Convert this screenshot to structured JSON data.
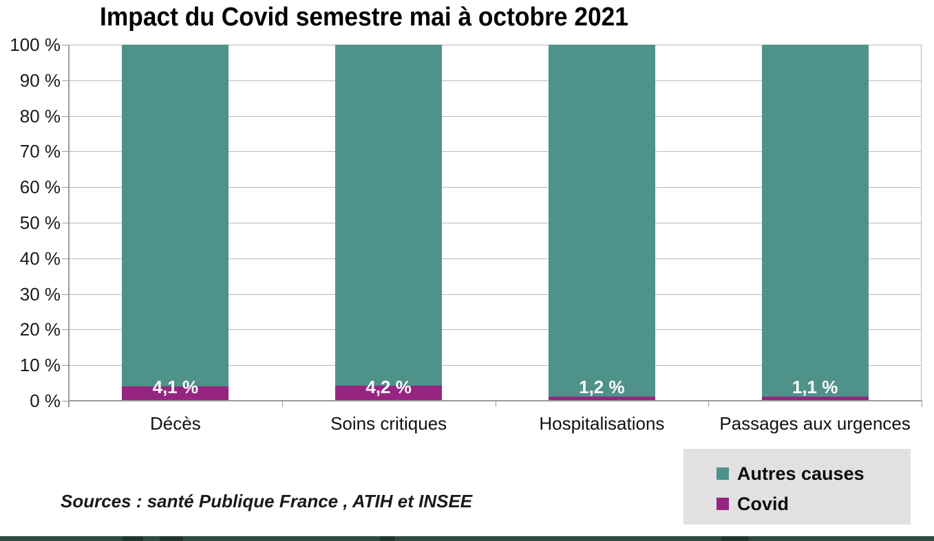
{
  "chart_data": {
    "type": "bar",
    "stacked": true,
    "title": "Impact du Covid semestre mai à octobre 2021",
    "categories": [
      "Décès",
      "Soins critiques",
      "Hospitalisations",
      "Passages aux urgences"
    ],
    "series": [
      {
        "name": "Covid",
        "color": "#962581",
        "values": [
          4.1,
          4.2,
          1.2,
          1.1
        ],
        "value_labels": [
          "4,1 %",
          "4,2 %",
          "1,2 %",
          "1,1 %"
        ]
      },
      {
        "name": "Autres causes",
        "color": "#4f928a",
        "values": [
          95.9,
          95.8,
          98.8,
          98.9
        ]
      }
    ],
    "ylabel": "",
    "xlabel": "",
    "ylim": [
      0,
      100
    ],
    "y_ticks": [
      "0 %",
      "10 %",
      "20 %",
      "30 %",
      "40 %",
      "50 %",
      "60 %",
      "70 %",
      "80 %",
      "90 %",
      "100 %"
    ],
    "grid": true,
    "legend_position": "bottom-right",
    "legend": [
      {
        "label": "Autres causes",
        "color": "#4f928a"
      },
      {
        "label": "Covid",
        "color": "#962581"
      }
    ],
    "source_note": "Sources : santé Publique France , ATIH et INSEE"
  },
  "colors": {
    "covid": "#962581",
    "autres_causes": "#4f928a",
    "legend_background": "#e1e1e1",
    "gridline": "#b9b9b9",
    "axis": "#9a9a9a",
    "bottom_band": "#2e4b42",
    "bottom_band_dark": "#18261f"
  }
}
